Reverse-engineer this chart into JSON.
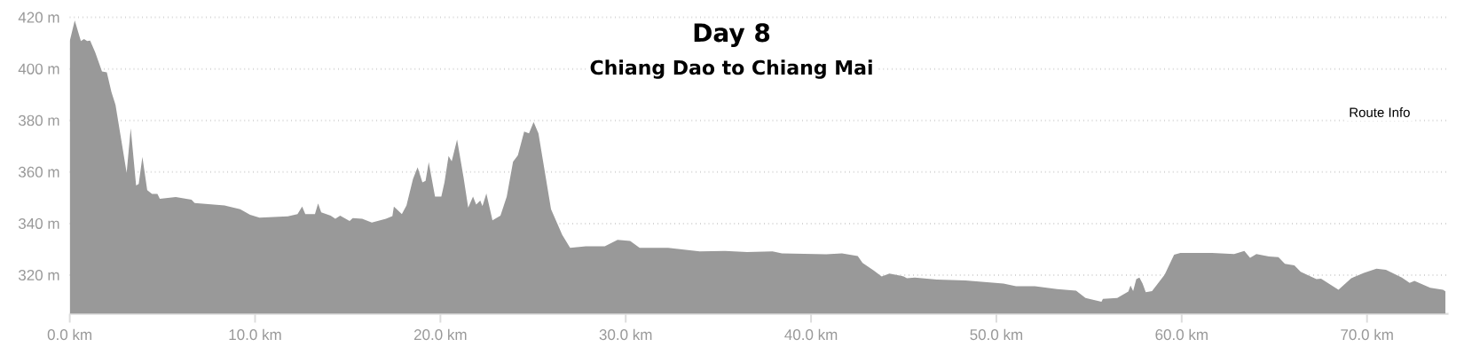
{
  "chart_data": {
    "type": "area",
    "title": "Day 8",
    "subtitle": "Chiang Dao to Chiang Mai",
    "annotations": [
      "Route Info"
    ],
    "x": [
      0,
      0.27,
      0.6,
      0.77,
      0.94,
      1.1,
      1.37,
      1.74,
      2.0,
      2.25,
      2.47,
      3.07,
      3.29,
      3.58,
      3.72,
      3.92,
      4.18,
      4.44,
      4.73,
      4.86,
      5.72,
      6.57,
      6.74,
      8.36,
      9.2,
      9.73,
      10.24,
      11.77,
      12.29,
      12.54,
      12.71,
      13.23,
      13.4,
      13.57,
      14.08,
      14.33,
      14.59,
      15.1,
      15.27,
      15.78,
      16.3,
      17.06,
      17.41,
      17.49,
      17.92,
      18.17,
      18.52,
      18.77,
      19.03,
      19.2,
      19.37,
      19.71,
      20.05,
      20.22,
      20.44,
      20.61,
      20.9,
      21.25,
      21.5,
      21.76,
      21.93,
      22.15,
      22.27,
      22.48,
      22.81,
      23.24,
      23.58,
      23.92,
      24.18,
      24.52,
      24.78,
      25.03,
      25.29,
      25.63,
      25.97,
      26.31,
      26.57,
      27.0,
      27.85,
      28.87,
      29.56,
      30.24,
      30.75,
      32.29,
      33.99,
      35.36,
      36.55,
      37.92,
      38.43,
      40.82,
      41.67,
      42.52,
      42.78,
      43.38,
      43.81,
      44.23,
      45.0,
      45.17,
      45.6,
      46.79,
      48.33,
      50.38,
      51.06,
      52.08,
      53.28,
      54.3,
      54.81,
      55.67,
      55.75,
      56.52,
      57.12,
      57.24,
      57.38,
      57.55,
      57.72,
      57.89,
      58.06,
      58.4,
      59.08,
      59.59,
      59.93,
      61.64,
      62.83,
      63.38,
      63.69,
      64.03,
      64.71,
      65.22,
      65.57,
      66.08,
      66.42,
      67.27,
      67.52,
      68.46,
      69.15,
      69.83,
      70.51,
      71.02,
      71.88,
      72.3,
      72.56,
      73.41,
      74.1,
      74.23
    ],
    "series": [
      {
        "color": "#999999",
        "values": [
          410.8,
          418.8,
          410.8,
          411.6,
          410.8,
          411,
          406.5,
          399,
          398.7,
          391,
          386,
          359.7,
          377,
          354.8,
          355.4,
          365.9,
          353,
          351.5,
          351.5,
          349.6,
          350.3,
          349.3,
          348,
          347,
          345.6,
          343.4,
          342.3,
          342.8,
          343.7,
          346.6,
          343.7,
          343.7,
          347.8,
          344.4,
          343.1,
          341.9,
          343.1,
          341,
          342.1,
          341.9,
          340.4,
          341.9,
          342.9,
          346.6,
          343.7,
          347,
          357.3,
          361.8,
          356,
          356.6,
          363.8,
          350.5,
          350.5,
          356,
          366.2,
          364.2,
          372.6,
          357.9,
          346.2,
          350.5,
          347.4,
          348.9,
          346.8,
          351.7,
          341.3,
          343.1,
          350.5,
          364,
          366.5,
          375.7,
          375,
          379.4,
          375,
          360.3,
          345.6,
          340,
          335.7,
          330.6,
          331.2,
          331.2,
          333.7,
          333.3,
          330.6,
          330.6,
          329.2,
          329.4,
          329,
          329.2,
          328.4,
          328.1,
          328.4,
          327.4,
          324.7,
          321.8,
          319.5,
          320.6,
          319.5,
          318.8,
          319.1,
          318.3,
          317.9,
          316.7,
          315.7,
          315.7,
          314.6,
          314,
          311.1,
          309.7,
          310.8,
          311.1,
          313.6,
          316,
          313.8,
          318.5,
          319.1,
          316.7,
          313.4,
          313.8,
          320.2,
          327.9,
          328.6,
          328.6,
          328.2,
          329.4,
          326.7,
          328.2,
          327.2,
          327,
          324.4,
          323.8,
          321.3,
          318.5,
          318.6,
          314.3,
          318.8,
          320.9,
          322.5,
          322.1,
          319.1,
          317,
          317.8,
          315.1,
          314.3,
          313.7
        ]
      }
    ],
    "xlim": [
      0,
      74.4
    ],
    "ylim": [
      305,
      420
    ],
    "xticks": [
      {
        "value": 0,
        "label": "0.0 km"
      },
      {
        "value": 10,
        "label": "10.0 km"
      },
      {
        "value": 20,
        "label": "20.0 km"
      },
      {
        "value": 30,
        "label": "30.0 km"
      },
      {
        "value": 40,
        "label": "40.0 km"
      },
      {
        "value": 50,
        "label": "50.0 km"
      },
      {
        "value": 60,
        "label": "60.0 km"
      },
      {
        "value": 70,
        "label": "70.0 km"
      }
    ],
    "yticks": [
      {
        "value": 320,
        "label": "320 m"
      },
      {
        "value": 340,
        "label": "340 m"
      },
      {
        "value": 360,
        "label": "360 m"
      },
      {
        "value": 380,
        "label": "380 m"
      },
      {
        "value": 400,
        "label": "400 m"
      },
      {
        "value": 420,
        "label": "420 m"
      }
    ],
    "grid": "y"
  }
}
